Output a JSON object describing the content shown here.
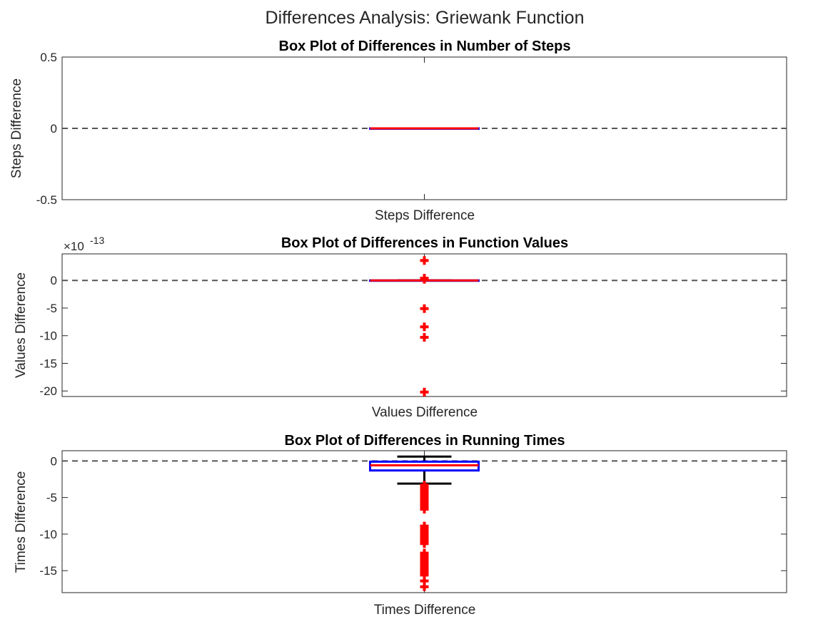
{
  "figure_title": "Differences Analysis: Griewank Function",
  "chart_data": [
    {
      "type": "box",
      "title": "Box Plot of Differences in Number of Steps",
      "xlabel": "Steps Difference",
      "ylabel": "Steps Difference",
      "ylim": [
        -0.5,
        0.5
      ],
      "yticks": [
        -0.5,
        0,
        0.5
      ],
      "ytick_labels": [
        "-0.5",
        "0",
        "0.5"
      ],
      "exponent_label": "",
      "reference_line": 0,
      "box": {
        "q1": 0,
        "median": 0,
        "q3": 0,
        "whisker_low": 0,
        "whisker_high": 0
      },
      "outliers": [],
      "colors": {
        "box": "#0000ff",
        "median": "#ff0000",
        "whisker": "#000000",
        "outlier": "#ff0000"
      }
    },
    {
      "type": "box",
      "title": "Box Plot of Differences in Function Values",
      "xlabel": "Values Difference",
      "ylabel": "Values Difference",
      "ylim": [
        -21,
        4.8
      ],
      "yticks": [
        -20,
        -15,
        -10,
        -5,
        0
      ],
      "ytick_labels": [
        "-20",
        "-15",
        "-10",
        "-5",
        "0"
      ],
      "exponent_label": "-13",
      "reference_line": 0,
      "box": {
        "q1": 0,
        "median": 0,
        "q3": 0,
        "whisker_low": 0,
        "whisker_high": 0
      },
      "outliers": [
        3.6,
        0.4,
        0.2,
        -5.1,
        -8.4,
        -10.3,
        -20.2
      ],
      "colors": {
        "box": "#0000ff",
        "median": "#ff0000",
        "whisker": "#000000",
        "outlier": "#ff0000"
      }
    },
    {
      "type": "box",
      "title": "Box Plot of Differences in Running Times",
      "xlabel": "Times Difference",
      "ylabel": "Times Difference",
      "ylim": [
        -18,
        1.4
      ],
      "yticks": [
        -15,
        -10,
        -5,
        0
      ],
      "ytick_labels": [
        "-15",
        "-10",
        "-5",
        "0"
      ],
      "exponent_label": "",
      "reference_line": 0,
      "box": {
        "q1": -1.3,
        "median": -0.6,
        "q3": -0.1,
        "whisker_low": -3.1,
        "whisker_high": 0.6
      },
      "outliers": [
        -3.3,
        -3.6,
        -3.9,
        -4.2,
        -4.5,
        -4.8,
        -5.1,
        -5.4,
        -5.7,
        -6.0,
        -6.3,
        -6.6,
        -8.9,
        -9.2,
        -9.5,
        -9.8,
        -10.1,
        -10.4,
        -10.7,
        -11.0,
        -11.3,
        -12.6,
        -12.9,
        -13.2,
        -13.5,
        -13.8,
        -14.1,
        -14.4,
        -14.7,
        -15.0,
        -15.3,
        -15.6,
        -16.4,
        -17.2
      ],
      "colors": {
        "box": "#0000ff",
        "median": "#ff0000",
        "whisker": "#000000",
        "outlier": "#ff0000"
      }
    }
  ]
}
